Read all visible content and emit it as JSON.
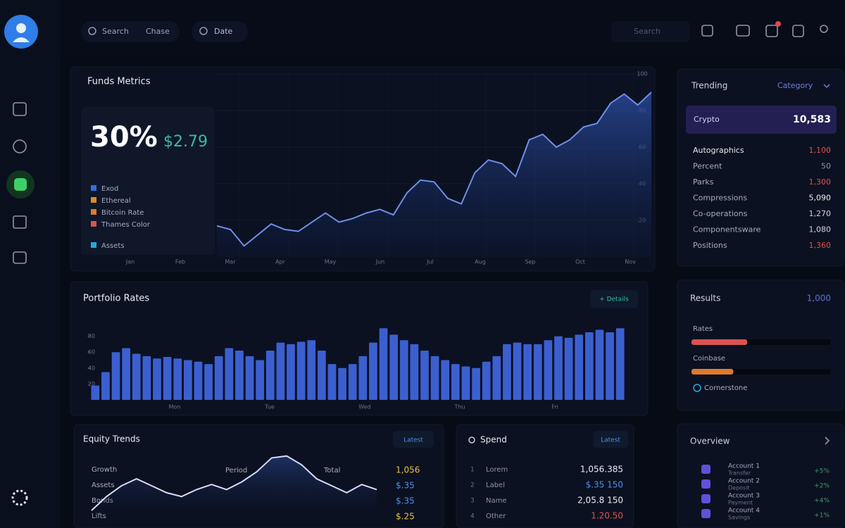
{
  "topbar": {
    "chips": [
      "Search",
      "Chase"
    ],
    "filter": "Date",
    "search_box": "Search"
  },
  "funds": {
    "title": "Funds Metrics",
    "percent": "30%",
    "amount": "$2.79",
    "legend": [
      {
        "label": "Exod",
        "color": "#2f6fe4"
      },
      {
        "label": "Ethereal",
        "color": "#e08a2d"
      },
      {
        "label": "Bitcoin Rate",
        "color": "#e0782d"
      },
      {
        "label": "Thames Color",
        "color": "#d9534f"
      }
    ],
    "footer": {
      "label": "Assets",
      "color": "#2aa6d9"
    },
    "chart": {
      "type": "area",
      "color": "#6f8fe8",
      "values": [
        17,
        15,
        6,
        12,
        18,
        15,
        14,
        19,
        24,
        19,
        21,
        24,
        26,
        23,
        35,
        42,
        41,
        32,
        29,
        46,
        53,
        51,
        44,
        64,
        67,
        60,
        64,
        71,
        73,
        84,
        89,
        83,
        90
      ],
      "ylim": [
        0,
        100
      ],
      "yticks": [
        20,
        40,
        60,
        80,
        100
      ],
      "xlabels": [
        "Jan",
        "Feb",
        "Mar",
        "Apr",
        "May",
        "Jun",
        "Jul",
        "Aug",
        "Sep",
        "Oct",
        "Nov"
      ]
    }
  },
  "portfolio": {
    "title": "Portfolio Rates",
    "button": "+ Details",
    "chart": {
      "type": "bar",
      "color": "#3c5fd0",
      "values": [
        18,
        35,
        60,
        65,
        58,
        55,
        52,
        54,
        52,
        50,
        48,
        45,
        55,
        65,
        62,
        55,
        50,
        62,
        72,
        70,
        73,
        75,
        62,
        45,
        40,
        45,
        55,
        72,
        90,
        82,
        75,
        70,
        62,
        55,
        50,
        45,
        42,
        40,
        48,
        55,
        70,
        72,
        70,
        70,
        75,
        80,
        78,
        82,
        85,
        88,
        85,
        90
      ],
      "ylim": [
        0,
        100
      ],
      "yticks": [
        20,
        40,
        60,
        80
      ],
      "xlabels": [
        "Mon",
        "Tue",
        "Wed",
        "Thu",
        "Fri"
      ]
    }
  },
  "equity": {
    "title": "Equity Trends",
    "button": "Latest",
    "rows": [
      "Growth",
      "Assets",
      "Bonds",
      "Lifts"
    ],
    "columns": [
      "Period",
      "Total"
    ],
    "values": [
      {
        "text": "1,056",
        "color": "#e3c440"
      },
      {
        "text": "$.35",
        "color": "#4f8de8"
      },
      {
        "text": "$.35",
        "color": "#4f8de8"
      },
      {
        "text": "$.25",
        "color": "#e3c440"
      }
    ],
    "chart": {
      "type": "line",
      "color": "#d6dcf5",
      "values": [
        11,
        33,
        50,
        61,
        50,
        39,
        33,
        44,
        52,
        44,
        56,
        72,
        94,
        97,
        83,
        61,
        50,
        39,
        52,
        44
      ],
      "ylim": [
        0,
        100
      ]
    }
  },
  "spend": {
    "title": "Spend",
    "button": "Latest",
    "rows": [
      {
        "rank": "1",
        "label": "Lorem",
        "value": "1,056.385",
        "color": "#e8ecf5"
      },
      {
        "rank": "2",
        "label": "Label",
        "value": "$.35 150",
        "color": "#4f8de8"
      },
      {
        "rank": "3",
        "label": "Name",
        "value": "2,05.8 150",
        "color": "#e8ecf5"
      },
      {
        "rank": "4",
        "label": "Other",
        "value": "1.20.50",
        "color": "#d9534f"
      }
    ]
  },
  "trending": {
    "title": "Trending",
    "dropdown": "Category",
    "highlight": {
      "label": "Crypto",
      "value": "10,583"
    },
    "rows": [
      {
        "label": "Autographics",
        "value": "1,100",
        "color": "#d9534f"
      },
      {
        "label": "Percent",
        "value": "50",
        "color": "#8a93a8"
      },
      {
        "label": "Parks",
        "value": "1,300",
        "color": "#d9534f"
      },
      {
        "label": "Compressions",
        "value": "5,090",
        "color": "#e8ecf5"
      },
      {
        "label": "Co-operations",
        "value": "1,270",
        "color": "#c9d1e3"
      },
      {
        "label": "Componentsware",
        "value": "1,080",
        "color": "#c9d1e3"
      },
      {
        "label": "Positions",
        "value": "1,360",
        "color": "#d9534f"
      }
    ]
  },
  "results": {
    "title": "Results",
    "value": "1,000",
    "items": [
      {
        "label": "Rates",
        "progress": 40,
        "color": "#d9534f"
      },
      {
        "label": "Coinbase",
        "progress": 30,
        "color": "#e0782d"
      },
      {
        "label": "Cornerstone",
        "progress": 0,
        "color": "#2aa6d9"
      }
    ]
  },
  "overview": {
    "title": "Overview",
    "rows": [
      {
        "title": "Account 1",
        "subtitle": "Transfer",
        "value": "+5%"
      },
      {
        "title": "Account 2",
        "subtitle": "Deposit",
        "value": "+2%"
      },
      {
        "title": "Account 3",
        "subtitle": "Payment",
        "value": "+4%"
      },
      {
        "title": "Account 4",
        "subtitle": "Savings",
        "value": "+1%"
      }
    ]
  }
}
